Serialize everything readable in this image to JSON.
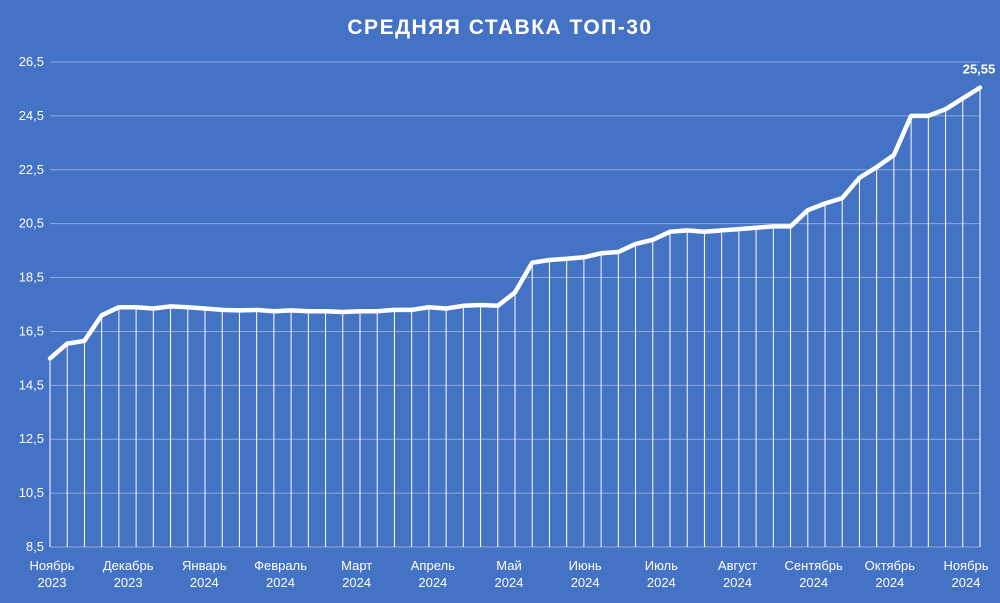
{
  "colors": {
    "background": "#4472C4",
    "line": "#FFFFFF",
    "grid": "#8FAADC",
    "drop": "#FFFFFF"
  },
  "chart_data": {
    "type": "line",
    "title": "СРЕДНЯЯ СТАВКА ТОП-30",
    "xlabel": "",
    "ylabel": "",
    "ylim": [
      8.5,
      26.5
    ],
    "yticks": [
      "8,5",
      "10,5",
      "12,5",
      "14,5",
      "16,5",
      "18,5",
      "20,5",
      "22,5",
      "24,5",
      "26,5"
    ],
    "grid": true,
    "drop_lines": true,
    "month_labels": [
      {
        "month": "Ноябрь",
        "year": "2023"
      },
      {
        "month": "Декабрь",
        "year": "2023"
      },
      {
        "month": "Январь",
        "year": "2024"
      },
      {
        "month": "Февраль",
        "year": "2024"
      },
      {
        "month": "Март",
        "year": "2024"
      },
      {
        "month": "Апрель",
        "year": "2024"
      },
      {
        "month": "Май",
        "year": "2024"
      },
      {
        "month": "Июнь",
        "year": "2024"
      },
      {
        "month": "Июль",
        "year": "2024"
      },
      {
        "month": "Август",
        "year": "2024"
      },
      {
        "month": "Сентябрь",
        "year": "2024"
      },
      {
        "month": "Октябрь",
        "year": "2024"
      },
      {
        "month": "Ноябрь",
        "year": "2024"
      }
    ],
    "series": [
      {
        "values": [
          15.5,
          16.05,
          16.15,
          17.1,
          17.4,
          17.4,
          17.35,
          17.43,
          17.4,
          17.35,
          17.3,
          17.28,
          17.3,
          17.25,
          17.28,
          17.25,
          17.25,
          17.22,
          17.25,
          17.25,
          17.3,
          17.3,
          17.4,
          17.35,
          17.45,
          17.48,
          17.45,
          17.95,
          19.05,
          19.15,
          19.2,
          19.25,
          19.4,
          19.45,
          19.75,
          19.9,
          20.2,
          20.25,
          20.2,
          20.25,
          20.3,
          20.35,
          20.4,
          20.4,
          21.0,
          21.25,
          21.45,
          22.2,
          22.6,
          23.05,
          24.5,
          24.5,
          24.75,
          25.15,
          25.55
        ],
        "end_label": "25,55"
      }
    ]
  }
}
